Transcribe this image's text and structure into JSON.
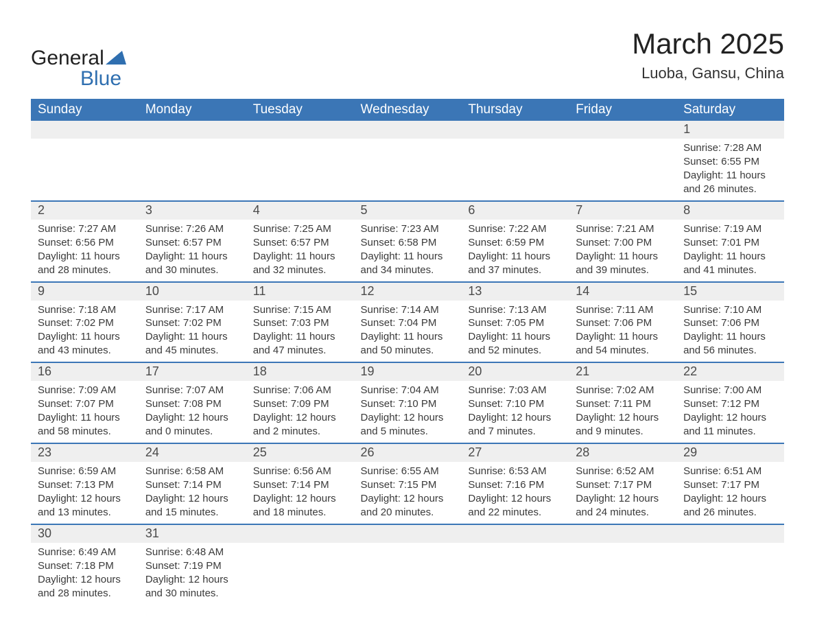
{
  "logo": {
    "word1": "General",
    "word2": "Blue"
  },
  "title": "March 2025",
  "location": "Luoba, Gansu, China",
  "colors": {
    "header_bg": "#3b76b6",
    "header_text": "#ffffff",
    "daynum_bg": "#efefef",
    "row_border": "#3b76b6",
    "body_text": "#3a3a3a",
    "logo_blue": "#2f6fb0"
  },
  "weekdays": [
    "Sunday",
    "Monday",
    "Tuesday",
    "Wednesday",
    "Thursday",
    "Friday",
    "Saturday"
  ],
  "weeks": [
    [
      {
        "day": "",
        "sunrise": "",
        "sunset": "",
        "daylight1": "",
        "daylight2": ""
      },
      {
        "day": "",
        "sunrise": "",
        "sunset": "",
        "daylight1": "",
        "daylight2": ""
      },
      {
        "day": "",
        "sunrise": "",
        "sunset": "",
        "daylight1": "",
        "daylight2": ""
      },
      {
        "day": "",
        "sunrise": "",
        "sunset": "",
        "daylight1": "",
        "daylight2": ""
      },
      {
        "day": "",
        "sunrise": "",
        "sunset": "",
        "daylight1": "",
        "daylight2": ""
      },
      {
        "day": "",
        "sunrise": "",
        "sunset": "",
        "daylight1": "",
        "daylight2": ""
      },
      {
        "day": "1",
        "sunrise": "Sunrise: 7:28 AM",
        "sunset": "Sunset: 6:55 PM",
        "daylight1": "Daylight: 11 hours",
        "daylight2": "and 26 minutes."
      }
    ],
    [
      {
        "day": "2",
        "sunrise": "Sunrise: 7:27 AM",
        "sunset": "Sunset: 6:56 PM",
        "daylight1": "Daylight: 11 hours",
        "daylight2": "and 28 minutes."
      },
      {
        "day": "3",
        "sunrise": "Sunrise: 7:26 AM",
        "sunset": "Sunset: 6:57 PM",
        "daylight1": "Daylight: 11 hours",
        "daylight2": "and 30 minutes."
      },
      {
        "day": "4",
        "sunrise": "Sunrise: 7:25 AM",
        "sunset": "Sunset: 6:57 PM",
        "daylight1": "Daylight: 11 hours",
        "daylight2": "and 32 minutes."
      },
      {
        "day": "5",
        "sunrise": "Sunrise: 7:23 AM",
        "sunset": "Sunset: 6:58 PM",
        "daylight1": "Daylight: 11 hours",
        "daylight2": "and 34 minutes."
      },
      {
        "day": "6",
        "sunrise": "Sunrise: 7:22 AM",
        "sunset": "Sunset: 6:59 PM",
        "daylight1": "Daylight: 11 hours",
        "daylight2": "and 37 minutes."
      },
      {
        "day": "7",
        "sunrise": "Sunrise: 7:21 AM",
        "sunset": "Sunset: 7:00 PM",
        "daylight1": "Daylight: 11 hours",
        "daylight2": "and 39 minutes."
      },
      {
        "day": "8",
        "sunrise": "Sunrise: 7:19 AM",
        "sunset": "Sunset: 7:01 PM",
        "daylight1": "Daylight: 11 hours",
        "daylight2": "and 41 minutes."
      }
    ],
    [
      {
        "day": "9",
        "sunrise": "Sunrise: 7:18 AM",
        "sunset": "Sunset: 7:02 PM",
        "daylight1": "Daylight: 11 hours",
        "daylight2": "and 43 minutes."
      },
      {
        "day": "10",
        "sunrise": "Sunrise: 7:17 AM",
        "sunset": "Sunset: 7:02 PM",
        "daylight1": "Daylight: 11 hours",
        "daylight2": "and 45 minutes."
      },
      {
        "day": "11",
        "sunrise": "Sunrise: 7:15 AM",
        "sunset": "Sunset: 7:03 PM",
        "daylight1": "Daylight: 11 hours",
        "daylight2": "and 47 minutes."
      },
      {
        "day": "12",
        "sunrise": "Sunrise: 7:14 AM",
        "sunset": "Sunset: 7:04 PM",
        "daylight1": "Daylight: 11 hours",
        "daylight2": "and 50 minutes."
      },
      {
        "day": "13",
        "sunrise": "Sunrise: 7:13 AM",
        "sunset": "Sunset: 7:05 PM",
        "daylight1": "Daylight: 11 hours",
        "daylight2": "and 52 minutes."
      },
      {
        "day": "14",
        "sunrise": "Sunrise: 7:11 AM",
        "sunset": "Sunset: 7:06 PM",
        "daylight1": "Daylight: 11 hours",
        "daylight2": "and 54 minutes."
      },
      {
        "day": "15",
        "sunrise": "Sunrise: 7:10 AM",
        "sunset": "Sunset: 7:06 PM",
        "daylight1": "Daylight: 11 hours",
        "daylight2": "and 56 minutes."
      }
    ],
    [
      {
        "day": "16",
        "sunrise": "Sunrise: 7:09 AM",
        "sunset": "Sunset: 7:07 PM",
        "daylight1": "Daylight: 11 hours",
        "daylight2": "and 58 minutes."
      },
      {
        "day": "17",
        "sunrise": "Sunrise: 7:07 AM",
        "sunset": "Sunset: 7:08 PM",
        "daylight1": "Daylight: 12 hours",
        "daylight2": "and 0 minutes."
      },
      {
        "day": "18",
        "sunrise": "Sunrise: 7:06 AM",
        "sunset": "Sunset: 7:09 PM",
        "daylight1": "Daylight: 12 hours",
        "daylight2": "and 2 minutes."
      },
      {
        "day": "19",
        "sunrise": "Sunrise: 7:04 AM",
        "sunset": "Sunset: 7:10 PM",
        "daylight1": "Daylight: 12 hours",
        "daylight2": "and 5 minutes."
      },
      {
        "day": "20",
        "sunrise": "Sunrise: 7:03 AM",
        "sunset": "Sunset: 7:10 PM",
        "daylight1": "Daylight: 12 hours",
        "daylight2": "and 7 minutes."
      },
      {
        "day": "21",
        "sunrise": "Sunrise: 7:02 AM",
        "sunset": "Sunset: 7:11 PM",
        "daylight1": "Daylight: 12 hours",
        "daylight2": "and 9 minutes."
      },
      {
        "day": "22",
        "sunrise": "Sunrise: 7:00 AM",
        "sunset": "Sunset: 7:12 PM",
        "daylight1": "Daylight: 12 hours",
        "daylight2": "and 11 minutes."
      }
    ],
    [
      {
        "day": "23",
        "sunrise": "Sunrise: 6:59 AM",
        "sunset": "Sunset: 7:13 PM",
        "daylight1": "Daylight: 12 hours",
        "daylight2": "and 13 minutes."
      },
      {
        "day": "24",
        "sunrise": "Sunrise: 6:58 AM",
        "sunset": "Sunset: 7:14 PM",
        "daylight1": "Daylight: 12 hours",
        "daylight2": "and 15 minutes."
      },
      {
        "day": "25",
        "sunrise": "Sunrise: 6:56 AM",
        "sunset": "Sunset: 7:14 PM",
        "daylight1": "Daylight: 12 hours",
        "daylight2": "and 18 minutes."
      },
      {
        "day": "26",
        "sunrise": "Sunrise: 6:55 AM",
        "sunset": "Sunset: 7:15 PM",
        "daylight1": "Daylight: 12 hours",
        "daylight2": "and 20 minutes."
      },
      {
        "day": "27",
        "sunrise": "Sunrise: 6:53 AM",
        "sunset": "Sunset: 7:16 PM",
        "daylight1": "Daylight: 12 hours",
        "daylight2": "and 22 minutes."
      },
      {
        "day": "28",
        "sunrise": "Sunrise: 6:52 AM",
        "sunset": "Sunset: 7:17 PM",
        "daylight1": "Daylight: 12 hours",
        "daylight2": "and 24 minutes."
      },
      {
        "day": "29",
        "sunrise": "Sunrise: 6:51 AM",
        "sunset": "Sunset: 7:17 PM",
        "daylight1": "Daylight: 12 hours",
        "daylight2": "and 26 minutes."
      }
    ],
    [
      {
        "day": "30",
        "sunrise": "Sunrise: 6:49 AM",
        "sunset": "Sunset: 7:18 PM",
        "daylight1": "Daylight: 12 hours",
        "daylight2": "and 28 minutes."
      },
      {
        "day": "31",
        "sunrise": "Sunrise: 6:48 AM",
        "sunset": "Sunset: 7:19 PM",
        "daylight1": "Daylight: 12 hours",
        "daylight2": "and 30 minutes."
      },
      {
        "day": "",
        "sunrise": "",
        "sunset": "",
        "daylight1": "",
        "daylight2": ""
      },
      {
        "day": "",
        "sunrise": "",
        "sunset": "",
        "daylight1": "",
        "daylight2": ""
      },
      {
        "day": "",
        "sunrise": "",
        "sunset": "",
        "daylight1": "",
        "daylight2": ""
      },
      {
        "day": "",
        "sunrise": "",
        "sunset": "",
        "daylight1": "",
        "daylight2": ""
      },
      {
        "day": "",
        "sunrise": "",
        "sunset": "",
        "daylight1": "",
        "daylight2": ""
      }
    ]
  ]
}
